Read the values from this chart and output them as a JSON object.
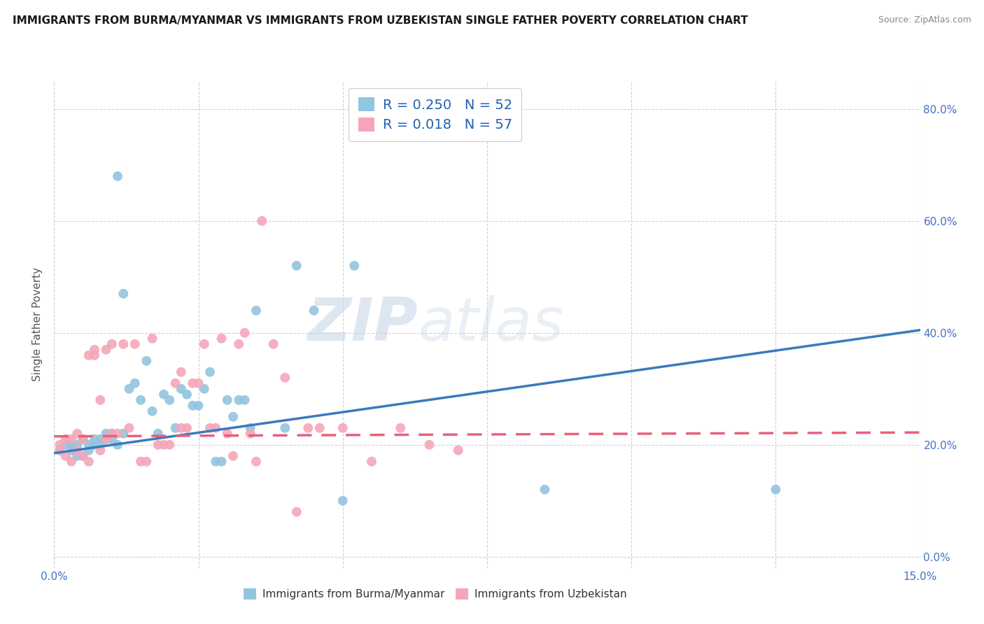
{
  "title": "IMMIGRANTS FROM BURMA/MYANMAR VS IMMIGRANTS FROM UZBEKISTAN SINGLE FATHER POVERTY CORRELATION CHART",
  "source": "Source: ZipAtlas.com",
  "ylabel": "Single Father Poverty",
  "legend_label1": "Immigrants from Burma/Myanmar",
  "legend_label2": "Immigrants from Uzbekistan",
  "R1": "0.250",
  "N1": "52",
  "R2": "0.018",
  "N2": "57",
  "color1": "#92c5de",
  "color2": "#f4a6b8",
  "trendline1_color": "#3a7abf",
  "trendline2_color": "#e8607a",
  "watermark_zip": "ZIP",
  "watermark_atlas": "atlas",
  "xlim": [
    0.0,
    0.15
  ],
  "ylim": [
    -0.02,
    0.85
  ],
  "background_color": "#ffffff",
  "grid_color": "#d0d0d0",
  "scatter1_x": [
    0.001,
    0.002,
    0.003,
    0.003,
    0.004,
    0.004,
    0.005,
    0.005,
    0.006,
    0.006,
    0.007,
    0.007,
    0.008,
    0.008,
    0.009,
    0.009,
    0.01,
    0.01,
    0.011,
    0.011,
    0.012,
    0.012,
    0.013,
    0.014,
    0.015,
    0.016,
    0.017,
    0.018,
    0.019,
    0.02,
    0.021,
    0.022,
    0.023,
    0.024,
    0.025,
    0.026,
    0.027,
    0.028,
    0.029,
    0.03,
    0.031,
    0.032,
    0.033,
    0.034,
    0.035,
    0.04,
    0.042,
    0.045,
    0.05,
    0.052,
    0.085,
    0.125
  ],
  "scatter1_y": [
    0.19,
    0.2,
    0.19,
    0.2,
    0.18,
    0.2,
    0.18,
    0.21,
    0.19,
    0.2,
    0.2,
    0.21,
    0.21,
    0.2,
    0.22,
    0.21,
    0.22,
    0.21,
    0.2,
    0.68,
    0.47,
    0.22,
    0.3,
    0.31,
    0.28,
    0.35,
    0.26,
    0.22,
    0.29,
    0.28,
    0.23,
    0.3,
    0.29,
    0.27,
    0.27,
    0.3,
    0.33,
    0.17,
    0.17,
    0.28,
    0.25,
    0.28,
    0.28,
    0.23,
    0.44,
    0.23,
    0.52,
    0.44,
    0.1,
    0.52,
    0.12,
    0.12
  ],
  "scatter2_x": [
    0.001,
    0.001,
    0.002,
    0.002,
    0.003,
    0.003,
    0.004,
    0.004,
    0.005,
    0.005,
    0.006,
    0.006,
    0.007,
    0.007,
    0.008,
    0.008,
    0.009,
    0.009,
    0.01,
    0.01,
    0.011,
    0.012,
    0.013,
    0.014,
    0.015,
    0.016,
    0.017,
    0.018,
    0.019,
    0.02,
    0.021,
    0.022,
    0.022,
    0.023,
    0.024,
    0.025,
    0.026,
    0.027,
    0.028,
    0.029,
    0.03,
    0.031,
    0.032,
    0.033,
    0.034,
    0.035,
    0.036,
    0.038,
    0.04,
    0.042,
    0.044,
    0.046,
    0.05,
    0.055,
    0.06,
    0.065,
    0.07
  ],
  "scatter2_y": [
    0.19,
    0.2,
    0.18,
    0.21,
    0.17,
    0.21,
    0.19,
    0.22,
    0.18,
    0.21,
    0.17,
    0.36,
    0.36,
    0.37,
    0.19,
    0.28,
    0.37,
    0.21,
    0.22,
    0.38,
    0.22,
    0.38,
    0.23,
    0.38,
    0.17,
    0.17,
    0.39,
    0.2,
    0.2,
    0.2,
    0.31,
    0.23,
    0.33,
    0.23,
    0.31,
    0.31,
    0.38,
    0.23,
    0.23,
    0.39,
    0.22,
    0.18,
    0.38,
    0.4,
    0.22,
    0.17,
    0.6,
    0.38,
    0.32,
    0.08,
    0.23,
    0.23,
    0.23,
    0.17,
    0.23,
    0.2,
    0.19
  ],
  "trendline1_x": [
    0.0,
    0.15
  ],
  "trendline1_y": [
    0.185,
    0.405
  ],
  "trendline2_x": [
    0.0,
    0.15
  ],
  "trendline2_y": [
    0.215,
    0.222
  ]
}
